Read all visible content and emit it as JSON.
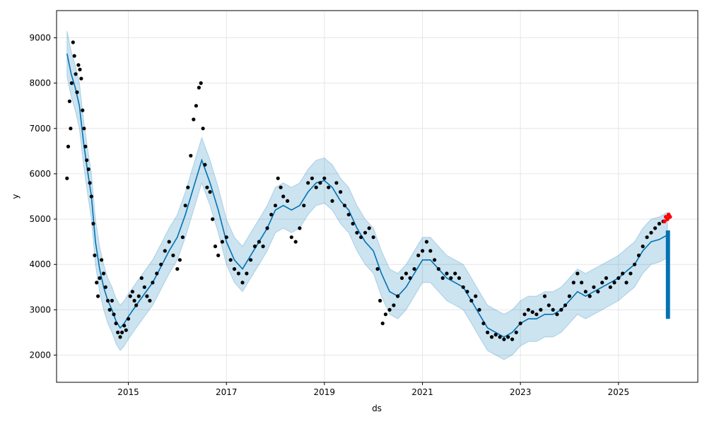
{
  "chart_data": {
    "type": "line",
    "title": "",
    "xlabel": "ds",
    "ylabel": "y",
    "x_range": [
      "2013-07-15",
      "2026-08-15"
    ],
    "ylim": [
      1400,
      9600
    ],
    "x_ticks": [
      {
        "date": "2015-01-01",
        "label": "2015"
      },
      {
        "date": "2017-01-01",
        "label": "2017"
      },
      {
        "date": "2019-01-01",
        "label": "2019"
      },
      {
        "date": "2021-01-01",
        "label": "2021"
      },
      {
        "date": "2023-01-01",
        "label": "2023"
      },
      {
        "date": "2025-01-01",
        "label": "2025"
      }
    ],
    "y_ticks": [
      2000,
      3000,
      4000,
      5000,
      6000,
      7000,
      8000,
      9000
    ],
    "grid": true,
    "colors": {
      "observed": "#000000",
      "forecast_line": "#0072B2",
      "uncertainty_band": "#0072B2",
      "recent_points": "#ff0000",
      "forecast_fill": "#0072B2"
    },
    "series": [
      {
        "name": "",
        "kind": "observed-points",
        "points": [
          [
            "2013-10-01",
            5900
          ],
          [
            "2013-10-10",
            6600
          ],
          [
            "2013-10-20",
            7600
          ],
          [
            "2013-10-28",
            7000
          ],
          [
            "2013-11-05",
            8000
          ],
          [
            "2013-11-15",
            8900
          ],
          [
            "2013-11-25",
            8600
          ],
          [
            "2013-12-05",
            8200
          ],
          [
            "2013-12-15",
            7800
          ],
          [
            "2013-12-25",
            8400
          ],
          [
            "2014-01-05",
            8300
          ],
          [
            "2014-01-15",
            8100
          ],
          [
            "2014-01-25",
            7400
          ],
          [
            "2014-02-05",
            7000
          ],
          [
            "2014-02-15",
            6600
          ],
          [
            "2014-02-25",
            6300
          ],
          [
            "2014-03-10",
            6100
          ],
          [
            "2014-03-20",
            5800
          ],
          [
            "2014-04-01",
            5500
          ],
          [
            "2014-04-15",
            4900
          ],
          [
            "2014-04-25",
            4200
          ],
          [
            "2014-05-10",
            3600
          ],
          [
            "2014-05-20",
            3300
          ],
          [
            "2014-06-01",
            3700
          ],
          [
            "2014-06-15",
            4100
          ],
          [
            "2014-07-01",
            3800
          ],
          [
            "2014-07-15",
            3500
          ],
          [
            "2014-08-01",
            3200
          ],
          [
            "2014-08-15",
            3000
          ],
          [
            "2014-09-01",
            3200
          ],
          [
            "2014-09-15",
            2900
          ],
          [
            "2014-10-01",
            2700
          ],
          [
            "2014-10-15",
            2500
          ],
          [
            "2014-11-01",
            2400
          ],
          [
            "2014-11-15",
            2500
          ],
          [
            "2014-12-01",
            2650
          ],
          [
            "2014-12-15",
            2550
          ],
          [
            "2015-01-01",
            2800
          ],
          [
            "2015-01-15",
            3300
          ],
          [
            "2015-02-01",
            3400
          ],
          [
            "2015-02-15",
            3200
          ],
          [
            "2015-03-01",
            3100
          ],
          [
            "2015-03-20",
            3300
          ],
          [
            "2015-04-10",
            3700
          ],
          [
            "2015-05-01",
            3500
          ],
          [
            "2015-05-20",
            3300
          ],
          [
            "2015-06-10",
            3200
          ],
          [
            "2015-07-01",
            3600
          ],
          [
            "2015-08-01",
            3800
          ],
          [
            "2015-09-01",
            4000
          ],
          [
            "2015-10-01",
            4300
          ],
          [
            "2015-11-01",
            4500
          ],
          [
            "2015-12-01",
            4200
          ],
          [
            "2016-01-01",
            3900
          ],
          [
            "2016-01-20",
            4100
          ],
          [
            "2016-02-10",
            4600
          ],
          [
            "2016-03-01",
            5300
          ],
          [
            "2016-03-20",
            5700
          ],
          [
            "2016-04-10",
            6400
          ],
          [
            "2016-05-01",
            7200
          ],
          [
            "2016-05-20",
            7500
          ],
          [
            "2016-06-10",
            7900
          ],
          [
            "2016-06-25",
            8000
          ],
          [
            "2016-07-10",
            7000
          ],
          [
            "2016-07-25",
            6200
          ],
          [
            "2016-08-10",
            5700
          ],
          [
            "2016-09-01",
            5600
          ],
          [
            "2016-09-20",
            5000
          ],
          [
            "2016-10-10",
            4400
          ],
          [
            "2016-11-01",
            4200
          ],
          [
            "2016-12-01",
            4500
          ],
          [
            "2017-01-01",
            4600
          ],
          [
            "2017-02-01",
            4100
          ],
          [
            "2017-03-01",
            3900
          ],
          [
            "2017-04-01",
            3800
          ],
          [
            "2017-05-01",
            3600
          ],
          [
            "2017-06-01",
            3800
          ],
          [
            "2017-07-01",
            4100
          ],
          [
            "2017-08-01",
            4400
          ],
          [
            "2017-09-01",
            4500
          ],
          [
            "2017-10-01",
            4400
          ],
          [
            "2017-11-01",
            4800
          ],
          [
            "2017-12-01",
            5100
          ],
          [
            "2018-01-01",
            5300
          ],
          [
            "2018-01-20",
            5900
          ],
          [
            "2018-02-10",
            5700
          ],
          [
            "2018-03-01",
            5500
          ],
          [
            "2018-04-01",
            5400
          ],
          [
            "2018-05-01",
            4600
          ],
          [
            "2018-06-01",
            4500
          ],
          [
            "2018-07-01",
            4800
          ],
          [
            "2018-08-01",
            5300
          ],
          [
            "2018-09-01",
            5800
          ],
          [
            "2018-10-01",
            5900
          ],
          [
            "2018-11-01",
            5700
          ],
          [
            "2018-12-01",
            5800
          ],
          [
            "2019-01-01",
            5900
          ],
          [
            "2019-02-01",
            5700
          ],
          [
            "2019-03-01",
            5400
          ],
          [
            "2019-04-01",
            5800
          ],
          [
            "2019-05-01",
            5600
          ],
          [
            "2019-06-01",
            5300
          ],
          [
            "2019-07-01",
            5100
          ],
          [
            "2019-08-01",
            4900
          ],
          [
            "2019-09-01",
            4700
          ],
          [
            "2019-10-01",
            4600
          ],
          [
            "2019-11-01",
            4700
          ],
          [
            "2019-12-01",
            4800
          ],
          [
            "2020-01-01",
            4600
          ],
          [
            "2020-02-01",
            3900
          ],
          [
            "2020-02-20",
            3200
          ],
          [
            "2020-03-10",
            2700
          ],
          [
            "2020-04-01",
            2900
          ],
          [
            "2020-05-01",
            3000
          ],
          [
            "2020-06-01",
            3100
          ],
          [
            "2020-07-01",
            3300
          ],
          [
            "2020-08-01",
            3700
          ],
          [
            "2020-09-01",
            3800
          ],
          [
            "2020-10-01",
            3700
          ],
          [
            "2020-11-01",
            3900
          ],
          [
            "2020-12-01",
            4200
          ],
          [
            "2021-01-01",
            4300
          ],
          [
            "2021-02-01",
            4500
          ],
          [
            "2021-03-01",
            4300
          ],
          [
            "2021-04-01",
            4100
          ],
          [
            "2021-05-01",
            3900
          ],
          [
            "2021-06-01",
            3700
          ],
          [
            "2021-07-01",
            3800
          ],
          [
            "2021-08-01",
            3700
          ],
          [
            "2021-09-01",
            3800
          ],
          [
            "2021-10-01",
            3700
          ],
          [
            "2021-11-01",
            3500
          ],
          [
            "2021-12-01",
            3400
          ],
          [
            "2022-01-01",
            3200
          ],
          [
            "2022-02-01",
            3300
          ],
          [
            "2022-03-01",
            3000
          ],
          [
            "2022-04-01",
            2700
          ],
          [
            "2022-05-01",
            2500
          ],
          [
            "2022-06-01",
            2400
          ],
          [
            "2022-07-01",
            2450
          ],
          [
            "2022-08-01",
            2400
          ],
          [
            "2022-09-01",
            2350
          ],
          [
            "2022-10-01",
            2400
          ],
          [
            "2022-11-01",
            2350
          ],
          [
            "2022-12-01",
            2500
          ],
          [
            "2023-01-01",
            2700
          ],
          [
            "2023-02-01",
            2900
          ],
          [
            "2023-03-01",
            3000
          ],
          [
            "2023-04-01",
            2950
          ],
          [
            "2023-05-01",
            2900
          ],
          [
            "2023-06-01",
            3000
          ],
          [
            "2023-07-01",
            3300
          ],
          [
            "2023-08-01",
            3100
          ],
          [
            "2023-09-01",
            3000
          ],
          [
            "2023-10-01",
            2900
          ],
          [
            "2023-11-01",
            3000
          ],
          [
            "2023-12-01",
            3100
          ],
          [
            "2024-01-01",
            3300
          ],
          [
            "2024-02-01",
            3600
          ],
          [
            "2024-03-01",
            3800
          ],
          [
            "2024-04-01",
            3600
          ],
          [
            "2024-05-01",
            3400
          ],
          [
            "2024-06-01",
            3300
          ],
          [
            "2024-07-01",
            3500
          ],
          [
            "2024-08-01",
            3400
          ],
          [
            "2024-09-01",
            3600
          ],
          [
            "2024-10-01",
            3700
          ],
          [
            "2024-11-01",
            3500
          ],
          [
            "2024-12-01",
            3600
          ],
          [
            "2025-01-01",
            3700
          ],
          [
            "2025-02-01",
            3800
          ],
          [
            "2025-03-01",
            3600
          ],
          [
            "2025-04-01",
            3800
          ],
          [
            "2025-05-01",
            4000
          ],
          [
            "2025-06-01",
            4200
          ],
          [
            "2025-07-01",
            4400
          ],
          [
            "2025-08-01",
            4600
          ],
          [
            "2025-09-01",
            4700
          ],
          [
            "2025-10-01",
            4800
          ],
          [
            "2025-11-01",
            4900
          ],
          [
            "2025-12-01",
            4950
          ]
        ]
      },
      {
        "name": "",
        "kind": "recent-points",
        "points": [
          [
            "2025-12-10",
            4950
          ],
          [
            "2025-12-20",
            5050
          ],
          [
            "2026-01-01",
            5000
          ],
          [
            "2026-01-10",
            5100
          ],
          [
            "2026-01-20",
            5050
          ]
        ]
      },
      {
        "name": "",
        "kind": "forecast-line",
        "points": [
          [
            "2013-10-01",
            8650
          ],
          [
            "2013-11-01",
            8200
          ],
          [
            "2013-12-01",
            7900
          ],
          [
            "2014-01-01",
            7500
          ],
          [
            "2014-02-01",
            6700
          ],
          [
            "2014-03-01",
            6100
          ],
          [
            "2014-04-01",
            5500
          ],
          [
            "2014-05-01",
            4500
          ],
          [
            "2014-06-01",
            3900
          ],
          [
            "2014-07-01",
            3500
          ],
          [
            "2014-08-01",
            3200
          ],
          [
            "2014-09-01",
            3000
          ],
          [
            "2014-10-01",
            2750
          ],
          [
            "2014-11-01",
            2600
          ],
          [
            "2014-12-01",
            2700
          ],
          [
            "2015-01-01",
            2850
          ],
          [
            "2015-03-01",
            3100
          ],
          [
            "2015-05-01",
            3350
          ],
          [
            "2015-07-01",
            3600
          ],
          [
            "2015-09-01",
            3950
          ],
          [
            "2015-11-01",
            4300
          ],
          [
            "2016-01-01",
            4600
          ],
          [
            "2016-03-01",
            5100
          ],
          [
            "2016-05-01",
            5700
          ],
          [
            "2016-07-01",
            6300
          ],
          [
            "2016-09-01",
            5800
          ],
          [
            "2016-11-01",
            5200
          ],
          [
            "2017-01-01",
            4500
          ],
          [
            "2017-03-01",
            4100
          ],
          [
            "2017-05-01",
            3900
          ],
          [
            "2017-07-01",
            4200
          ],
          [
            "2017-09-01",
            4500
          ],
          [
            "2017-11-01",
            4800
          ],
          [
            "2018-01-01",
            5200
          ],
          [
            "2018-03-01",
            5300
          ],
          [
            "2018-05-01",
            5200
          ],
          [
            "2018-07-01",
            5300
          ],
          [
            "2018-09-01",
            5600
          ],
          [
            "2018-11-01",
            5800
          ],
          [
            "2019-01-01",
            5850
          ],
          [
            "2019-03-01",
            5700
          ],
          [
            "2019-05-01",
            5400
          ],
          [
            "2019-07-01",
            5200
          ],
          [
            "2019-09-01",
            4800
          ],
          [
            "2019-11-01",
            4500
          ],
          [
            "2020-01-01",
            4300
          ],
          [
            "2020-03-01",
            3800
          ],
          [
            "2020-05-01",
            3400
          ],
          [
            "2020-07-01",
            3300
          ],
          [
            "2020-09-01",
            3500
          ],
          [
            "2020-11-01",
            3800
          ],
          [
            "2021-01-01",
            4100
          ],
          [
            "2021-03-01",
            4100
          ],
          [
            "2021-05-01",
            3900
          ],
          [
            "2021-07-01",
            3700
          ],
          [
            "2021-09-01",
            3600
          ],
          [
            "2021-11-01",
            3500
          ],
          [
            "2022-01-01",
            3200
          ],
          [
            "2022-03-01",
            2900
          ],
          [
            "2022-05-01",
            2600
          ],
          [
            "2022-07-01",
            2500
          ],
          [
            "2022-09-01",
            2400
          ],
          [
            "2022-11-01",
            2500
          ],
          [
            "2023-01-01",
            2700
          ],
          [
            "2023-03-01",
            2800
          ],
          [
            "2023-05-01",
            2800
          ],
          [
            "2023-07-01",
            2900
          ],
          [
            "2023-09-01",
            2900
          ],
          [
            "2023-11-01",
            3000
          ],
          [
            "2024-01-01",
            3200
          ],
          [
            "2024-03-01",
            3400
          ],
          [
            "2024-05-01",
            3300
          ],
          [
            "2024-07-01",
            3400
          ],
          [
            "2024-09-01",
            3500
          ],
          [
            "2024-11-01",
            3600
          ],
          [
            "2025-01-01",
            3700
          ],
          [
            "2025-03-01",
            3850
          ],
          [
            "2025-05-01",
            4000
          ],
          [
            "2025-07-01",
            4300
          ],
          [
            "2025-09-01",
            4500
          ],
          [
            "2025-11-01",
            4550
          ],
          [
            "2026-01-01",
            4650
          ]
        ]
      },
      {
        "name": "",
        "kind": "uncertainty-band",
        "band_halfwidth": 500
      },
      {
        "name": "",
        "kind": "forecast-fill",
        "x_start": "2025-12-20",
        "x_end": "2026-01-20",
        "lower": 2800,
        "upper": 4750
      }
    ]
  }
}
